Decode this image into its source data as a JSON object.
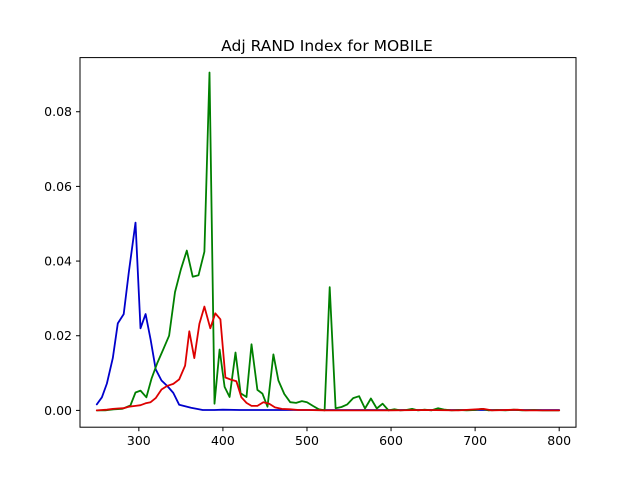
{
  "chart_data": {
    "type": "line",
    "title": "Adj RAND Index for MOBILE",
    "xlabel": "",
    "ylabel": "",
    "xlim": [
      230,
      820
    ],
    "ylim": [
      -0.0045,
      0.0945
    ],
    "xticks": [
      300,
      400,
      500,
      600,
      700,
      800
    ],
    "yticks": [
      0.0,
      0.02,
      0.04,
      0.06,
      0.08
    ],
    "ytick_labels": [
      "0.00",
      "0.02",
      "0.04",
      "0.06",
      "0.08"
    ],
    "grid": false,
    "series": [
      {
        "color": "#0000cc",
        "points": [
          [
            250,
            0.0016
          ],
          [
            256,
            0.0035
          ],
          [
            262,
            0.0072
          ],
          [
            269,
            0.014
          ],
          [
            275,
            0.0233
          ],
          [
            282,
            0.0258
          ],
          [
            288,
            0.037
          ],
          [
            296,
            0.0503
          ],
          [
            302,
            0.022
          ],
          [
            308,
            0.0258
          ],
          [
            314,
            0.019
          ],
          [
            320,
            0.011
          ],
          [
            327,
            0.008
          ],
          [
            334,
            0.0065
          ],
          [
            341,
            0.0047
          ],
          [
            348,
            0.0015
          ],
          [
            355,
            0.0011
          ],
          [
            362,
            0.0007
          ],
          [
            369,
            0.0004
          ],
          [
            376,
            0.0001
          ],
          [
            390,
            0.0001
          ],
          [
            400,
            0.0002
          ],
          [
            420,
            0.0001
          ],
          [
            800,
            0.0001
          ]
        ]
      },
      {
        "color": "#008000",
        "points": [
          [
            250,
            0.0
          ],
          [
            260,
            0.0
          ],
          [
            270,
            0.0003
          ],
          [
            280,
            0.0004
          ],
          [
            290,
            0.0013
          ],
          [
            296,
            0.0048
          ],
          [
            302,
            0.0053
          ],
          [
            309,
            0.0035
          ],
          [
            315,
            0.0085
          ],
          [
            322,
            0.0127
          ],
          [
            329,
            0.0163
          ],
          [
            336,
            0.02
          ],
          [
            343,
            0.0317
          ],
          [
            350,
            0.0378
          ],
          [
            357,
            0.0428
          ],
          [
            364,
            0.0358
          ],
          [
            371,
            0.0362
          ],
          [
            378,
            0.0425
          ],
          [
            384,
            0.0905
          ],
          [
            390,
            0.0018
          ],
          [
            396,
            0.0163
          ],
          [
            402,
            0.0063
          ],
          [
            408,
            0.0036
          ],
          [
            415,
            0.0155
          ],
          [
            421,
            0.0046
          ],
          [
            428,
            0.0036
          ],
          [
            434,
            0.0177
          ],
          [
            441,
            0.0055
          ],
          [
            447,
            0.0045
          ],
          [
            453,
            0.001
          ],
          [
            460,
            0.015
          ],
          [
            466,
            0.008
          ],
          [
            473,
            0.0044
          ],
          [
            480,
            0.0022
          ],
          [
            487,
            0.002
          ],
          [
            494,
            0.0025
          ],
          [
            500,
            0.0022
          ],
          [
            507,
            0.0012
          ],
          [
            514,
            0.0003
          ],
          [
            521,
            0.0
          ],
          [
            527,
            0.033
          ],
          [
            534,
            0.0006
          ],
          [
            541,
            0.0009
          ],
          [
            548,
            0.0016
          ],
          [
            555,
            0.0033
          ],
          [
            562,
            0.0038
          ],
          [
            569,
            0.0005
          ],
          [
            576,
            0.0032
          ],
          [
            583,
            0.0005
          ],
          [
            590,
            0.0018
          ],
          [
            597,
            0.0
          ],
          [
            604,
            0.0003
          ],
          [
            611,
            0.0
          ],
          [
            618,
            0.0001
          ],
          [
            625,
            0.0004
          ],
          [
            632,
            0.0
          ],
          [
            640,
            0.0002
          ],
          [
            648,
            0.0
          ],
          [
            656,
            0.0006
          ],
          [
            664,
            0.0002
          ],
          [
            672,
            0.0
          ],
          [
            680,
            0.0001
          ],
          [
            690,
            0.0
          ],
          [
            700,
            0.0001
          ],
          [
            708,
            0.0004
          ],
          [
            716,
            0.0
          ],
          [
            726,
            0.0001
          ],
          [
            736,
            0.0
          ],
          [
            746,
            0.0002
          ],
          [
            756,
            0.0
          ],
          [
            770,
            0.0001
          ],
          [
            780,
            0.0
          ],
          [
            800,
            0.0
          ]
        ]
      },
      {
        "color": "#dd0000",
        "points": [
          [
            250,
            0.0
          ],
          [
            256,
            0.0001
          ],
          [
            262,
            0.0002
          ],
          [
            269,
            0.0004
          ],
          [
            275,
            0.0005
          ],
          [
            282,
            0.0006
          ],
          [
            288,
            0.001
          ],
          [
            296,
            0.0012
          ],
          [
            302,
            0.0014
          ],
          [
            308,
            0.0019
          ],
          [
            314,
            0.0022
          ],
          [
            320,
            0.0033
          ],
          [
            327,
            0.0056
          ],
          [
            334,
            0.0066
          ],
          [
            341,
            0.0071
          ],
          [
            348,
            0.0083
          ],
          [
            355,
            0.012
          ],
          [
            360,
            0.0212
          ],
          [
            366,
            0.014
          ],
          [
            372,
            0.0232
          ],
          [
            378,
            0.0278
          ],
          [
            385,
            0.022
          ],
          [
            391,
            0.026
          ],
          [
            397,
            0.0244
          ],
          [
            403,
            0.0088
          ],
          [
            410,
            0.0082
          ],
          [
            416,
            0.0078
          ],
          [
            422,
            0.0035
          ],
          [
            428,
            0.002
          ],
          [
            434,
            0.0012
          ],
          [
            441,
            0.0012
          ],
          [
            448,
            0.0022
          ],
          [
            455,
            0.0018
          ],
          [
            462,
            0.0008
          ],
          [
            470,
            0.0004
          ],
          [
            480,
            0.0003
          ],
          [
            490,
            0.0001
          ],
          [
            500,
            0.0001
          ],
          [
            520,
            0.0
          ],
          [
            560,
            0.0
          ],
          [
            600,
            0.0
          ],
          [
            640,
            0.0001
          ],
          [
            680,
            0.0
          ],
          [
            710,
            0.0004
          ],
          [
            720,
            0.0
          ],
          [
            750,
            0.0002
          ],
          [
            760,
            0.0
          ],
          [
            800,
            0.0
          ]
        ]
      }
    ]
  }
}
